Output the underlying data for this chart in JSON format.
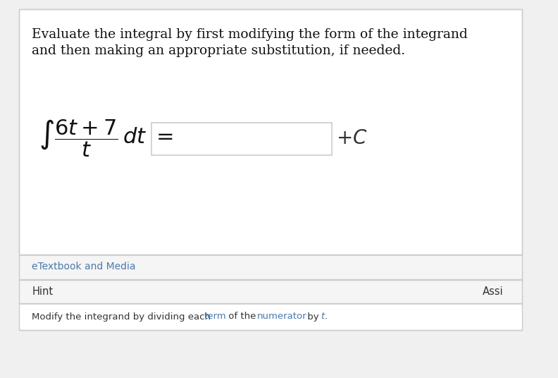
{
  "bg_color": "#ffffff",
  "outer_bg": "#f0f0f0",
  "title_text_line1": "Evaluate the integral by first modifying the form of the integrand",
  "title_text_line2": "and then making an appropriate substitution, if needed.",
  "title_fontsize": 13.5,
  "title_font": "DejaVu Serif",
  "main_panel_bg": "#ffffff",
  "main_panel_border": "#cccccc",
  "etextbook_text": "eTextbook and Media",
  "etextbook_color": "#4a7aad",
  "etextbook_fontsize": 10,
  "hint_text": "Hint",
  "hint_color": "#333333",
  "hint_fontsize": 10.5,
  "assi_text": "Assi",
  "assi_color": "#333333",
  "assi_fontsize": 10.5,
  "hint_detail_text": "Modify the integrand by dividing each ",
  "hint_detail_text2": "term",
  "hint_detail_text3": " of the ",
  "hint_detail_text4": "numerator",
  "hint_detail_text5": " by ",
  "hint_detail_text6": "t",
  "hint_detail_text7": ".",
  "hint_detail_color_normal": "#333333",
  "hint_detail_color_link": "#4a7aad",
  "hint_detail_fontsize": 9.5,
  "panel_separator_color": "#cccccc",
  "input_box_color": "#cccccc",
  "plus_c_color": "#333333"
}
